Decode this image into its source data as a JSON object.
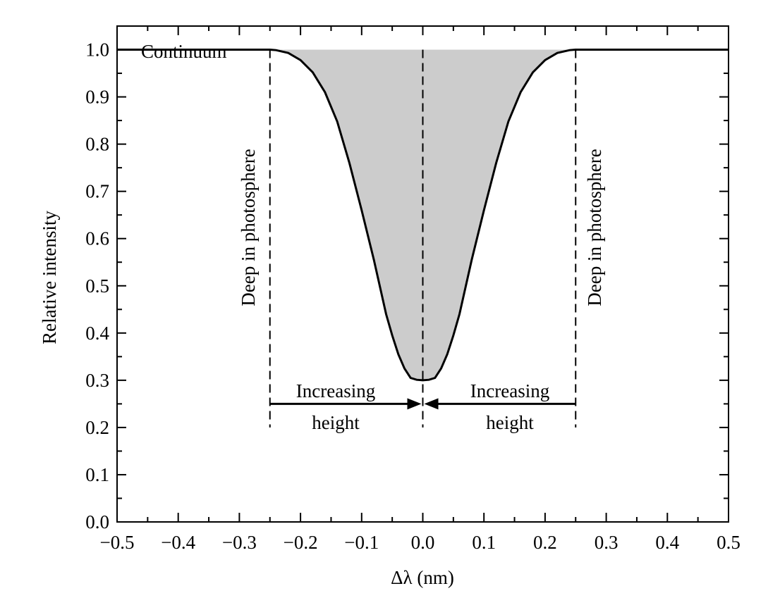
{
  "chart_data": {
    "type": "line",
    "xlabel": "Δλ (nm)",
    "ylabel": "Relative intensity",
    "xlim": [
      -0.5,
      0.5
    ],
    "ylim": [
      0.0,
      1.05
    ],
    "x_ticks": [
      -0.5,
      -0.4,
      -0.3,
      -0.2,
      -0.1,
      0.0,
      0.1,
      0.2,
      0.3,
      0.4,
      0.5
    ],
    "x_tick_labels": [
      "−0.5",
      "−0.4",
      "−0.3",
      "−0.2",
      "−0.1",
      "0.0",
      "0.1",
      "0.2",
      "0.3",
      "0.4",
      "0.5"
    ],
    "y_ticks": [
      0.0,
      0.1,
      0.2,
      0.3,
      0.4,
      0.5,
      0.6,
      0.7,
      0.8,
      0.9,
      1.0
    ],
    "y_tick_labels": [
      "0.0",
      "0.1",
      "0.2",
      "0.3",
      "0.4",
      "0.5",
      "0.6",
      "0.7",
      "0.8",
      "0.9",
      "1.0"
    ],
    "series": [
      {
        "x": [
          -0.5,
          -0.3,
          -0.26,
          -0.25,
          -0.24,
          -0.22,
          -0.2,
          -0.18,
          -0.16,
          -0.14,
          -0.12,
          -0.1,
          -0.08,
          -0.06,
          -0.05,
          -0.04,
          -0.03,
          -0.02,
          -0.01,
          0.0,
          0.01,
          0.02,
          0.03,
          0.04,
          0.05,
          0.06,
          0.08,
          0.1,
          0.12,
          0.14,
          0.16,
          0.18,
          0.2,
          0.22,
          0.24,
          0.25,
          0.26,
          0.3,
          0.5
        ],
        "y": [
          1.0,
          1.0,
          1.0,
          1.0,
          0.999,
          0.993,
          0.978,
          0.952,
          0.91,
          0.848,
          0.76,
          0.66,
          0.555,
          0.44,
          0.395,
          0.355,
          0.325,
          0.305,
          0.301,
          0.3,
          0.301,
          0.305,
          0.325,
          0.355,
          0.395,
          0.44,
          0.555,
          0.66,
          0.76,
          0.848,
          0.91,
          0.952,
          0.978,
          0.993,
          0.999,
          1.0,
          1.0,
          1.0,
          1.0
        ]
      }
    ],
    "fill_under_continuum": true,
    "fill_color": "#cccccc",
    "line_color": "#000000",
    "vertical_dashed_lines_x": [
      -0.25,
      0.0,
      0.25
    ],
    "annotations": {
      "continuum": "Continuum",
      "deep_left": "Deep in photosphere",
      "deep_right": "Deep in photosphere",
      "increasing_left_1": "Increasing",
      "increasing_left_2": "height",
      "increasing_right_1": "Increasing",
      "increasing_right_2": "height"
    },
    "grid": false
  }
}
